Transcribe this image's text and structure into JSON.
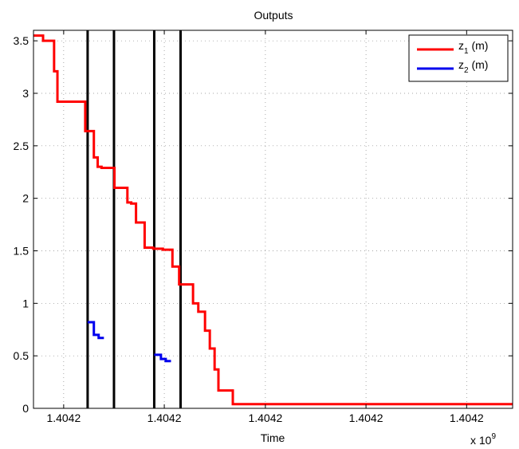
{
  "chart_data": {
    "type": "line",
    "title": "Outputs",
    "xlabel": "Time",
    "ylabel": "",
    "x_multiplier_label": "x 10",
    "x_multiplier_exponent": "9",
    "ylim": [
      0,
      3.6
    ],
    "xlim": [
      0,
      100
    ],
    "grid": true,
    "legend_position": "top-right",
    "yticks": [
      {
        "value": 0,
        "label": "0"
      },
      {
        "value": 0.5,
        "label": "0.5"
      },
      {
        "value": 1,
        "label": "1"
      },
      {
        "value": 1.5,
        "label": "1.5"
      },
      {
        "value": 2,
        "label": "2"
      },
      {
        "value": 2.5,
        "label": "2.5"
      },
      {
        "value": 3,
        "label": "3"
      },
      {
        "value": 3.5,
        "label": "3.5"
      }
    ],
    "xticks": [
      {
        "value": 6.3,
        "label": "1.4042"
      },
      {
        "value": 27.3,
        "label": "1.4042"
      },
      {
        "value": 48.4,
        "label": "1.4042"
      },
      {
        "value": 69.4,
        "label": "1.4042"
      },
      {
        "value": 90.4,
        "label": "1.4042"
      },
      {
        "value": 111.4,
        "label": "1.4042"
      }
    ],
    "vertical_markers": [
      11.3,
      16.8,
      25.2,
      30.7
    ],
    "series": [
      {
        "name": "z",
        "name_sub": "1",
        "name_suffix": " (m)",
        "color": "#ff0000",
        "x": [
          0,
          2.0,
          2.0,
          4.3,
          4.3,
          5.0,
          5.0,
          7.0,
          7.0,
          10.8,
          10.8,
          11.3,
          11.3,
          12.6,
          12.6,
          13.4,
          13.4,
          14.2,
          14.2,
          16.9,
          16.9,
          19.6,
          19.6,
          20.4,
          20.4,
          21.4,
          21.4,
          22.0,
          22.0,
          23.2,
          23.2,
          25.0,
          25.0,
          27.0,
          27.0,
          29.0,
          29.0,
          30.4,
          30.4,
          33.3,
          33.3,
          34.4,
          34.4,
          35.8,
          35.8,
          36.8,
          36.8,
          37.8,
          37.8,
          38.6,
          38.6,
          39.6,
          39.6,
          41.6,
          41.6,
          43.1,
          43.1,
          44.2,
          44.2,
          45.0,
          45.0,
          46.2,
          46.2,
          100
        ],
        "y": [
          3.55,
          3.55,
          3.5,
          3.5,
          3.21,
          3.21,
          2.92,
          2.92,
          2.92,
          2.92,
          2.64,
          2.64,
          2.64,
          2.64,
          2.39,
          2.39,
          2.3,
          2.3,
          2.29,
          2.29,
          2.1,
          2.1,
          1.96,
          1.96,
          1.95,
          1.95,
          1.77,
          1.77,
          1.77,
          1.77,
          1.53,
          1.53,
          1.52,
          1.52,
          1.51,
          1.51,
          1.35,
          1.35,
          1.18,
          1.18,
          1.0,
          1.0,
          0.92,
          0.92,
          0.74,
          0.74,
          0.57,
          0.57,
          0.37,
          0.37,
          0.17,
          0.17,
          0.17,
          0.17,
          0.04,
          0.04,
          0.04,
          0.04,
          0.04,
          0.04,
          0.04,
          0.04,
          0.04,
          0.04
        ]
      },
      {
        "name": "z",
        "name_sub": "2",
        "name_suffix": " (m)",
        "color": "#0000ee",
        "segments": [
          {
            "x": [
              11.3,
              12.6,
              12.6,
              13.6,
              13.6,
              14.7
            ],
            "y": [
              0.82,
              0.82,
              0.7,
              0.7,
              0.67,
              0.67
            ]
          },
          {
            "x": [
              25.2,
              26.6,
              26.6,
              27.6,
              27.6,
              28.7
            ],
            "y": [
              0.51,
              0.51,
              0.47,
              0.47,
              0.45,
              0.45
            ]
          }
        ]
      }
    ]
  }
}
